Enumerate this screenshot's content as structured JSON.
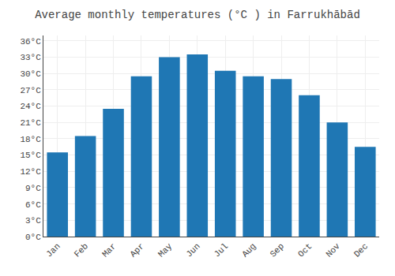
{
  "chart_data": {
    "type": "bar",
    "title": "Average monthly temperatures (°C ) in Farrukhābād",
    "categories": [
      "Jan",
      "Feb",
      "Mar",
      "Apr",
      "May",
      "Jun",
      "Jul",
      "Aug",
      "Sep",
      "Oct",
      "Nov",
      "Dec"
    ],
    "values": [
      15.5,
      18.5,
      23.5,
      29.5,
      33.0,
      33.5,
      30.5,
      29.5,
      29.0,
      26.0,
      21.0,
      16.5
    ],
    "ylim": [
      0,
      37
    ],
    "yticks": [
      {
        "value": 0,
        "label": "0°C"
      },
      {
        "value": 3,
        "label": "3°C"
      },
      {
        "value": 6,
        "label": "6°C"
      },
      {
        "value": 9,
        "label": "9°C"
      },
      {
        "value": 12,
        "label": "12°C"
      },
      {
        "value": 15,
        "label": "15°C"
      },
      {
        "value": 18,
        "label": "18°C"
      },
      {
        "value": 21,
        "label": "21°C"
      },
      {
        "value": 24,
        "label": "24°C"
      },
      {
        "value": 27,
        "label": "27°C"
      },
      {
        "value": 30,
        "label": "30°C"
      },
      {
        "value": 33,
        "label": "33°C"
      },
      {
        "value": 36,
        "label": "36°C"
      }
    ],
    "grid": true
  }
}
